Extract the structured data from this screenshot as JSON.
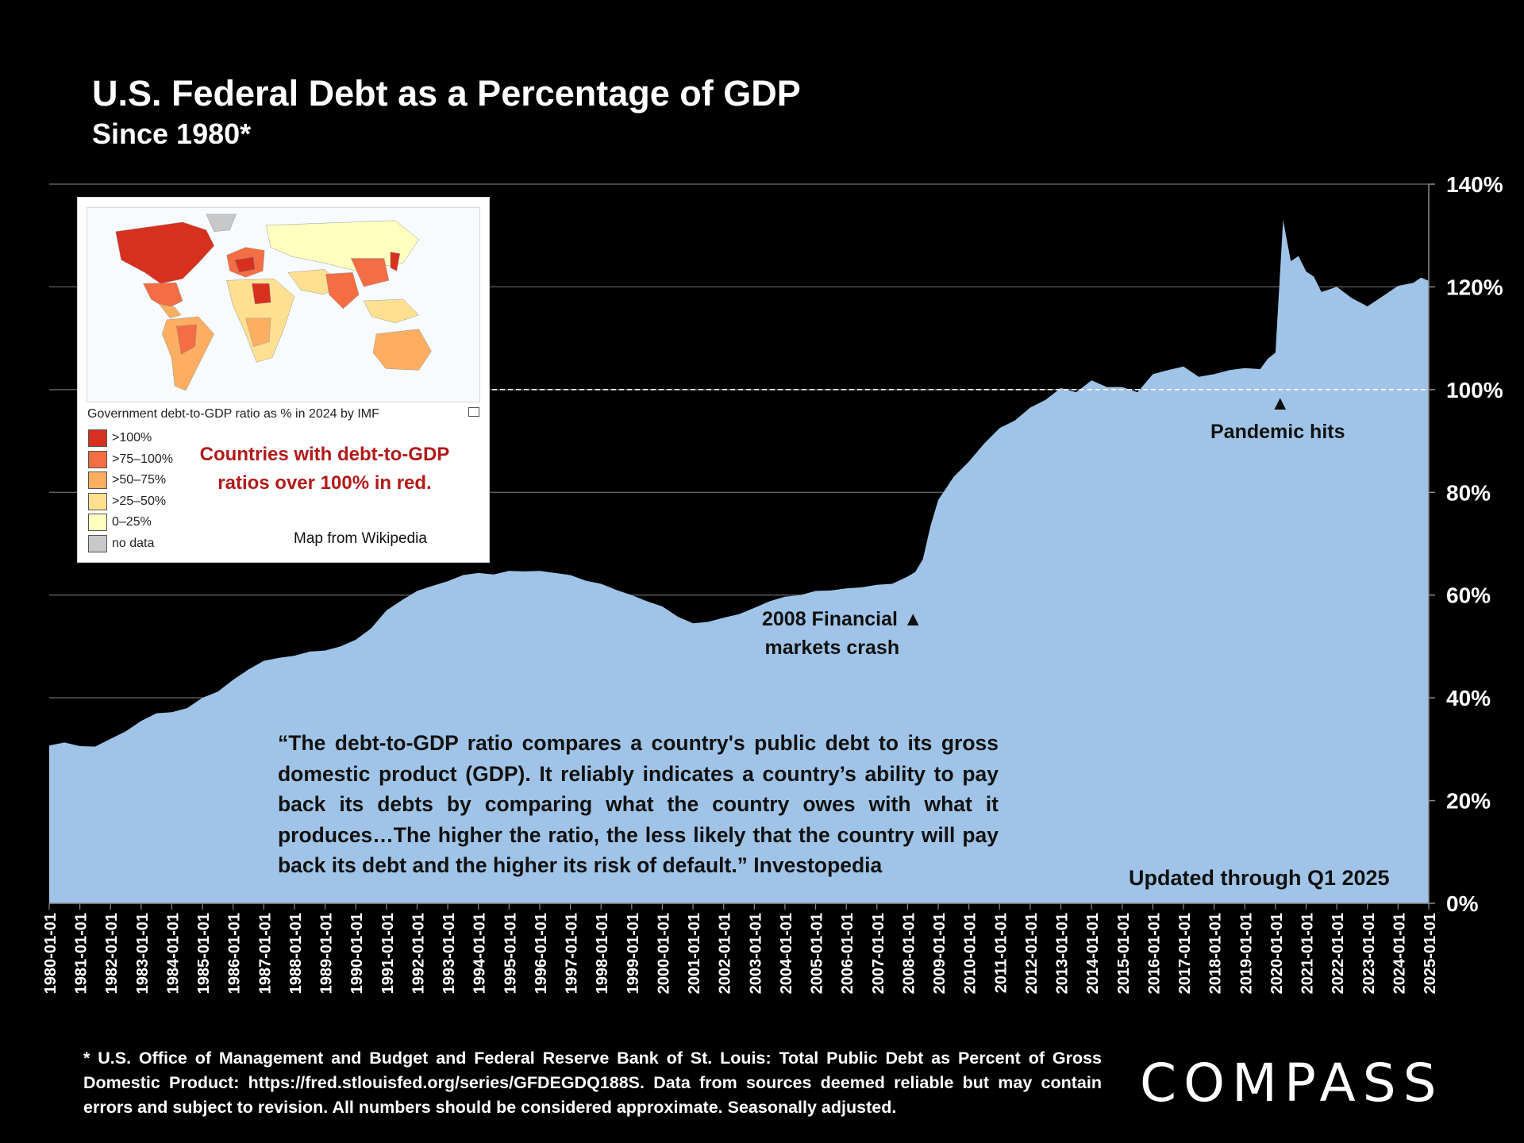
{
  "header": {
    "title": "U.S. Federal Debt as a Percentage of GDP",
    "subtitle": "Since 1980*"
  },
  "chart_data": {
    "type": "area",
    "title": "U.S. Federal Debt as a Percentage of GDP",
    "subtitle": "Since 1980*",
    "xlabel": "",
    "ylabel": "",
    "ylim": [
      0,
      140
    ],
    "y_ticks": [
      "0%",
      "20%",
      "40%",
      "60%",
      "80%",
      "100%",
      "120%",
      "140%"
    ],
    "x_ticks": [
      "1980-01-01",
      "1981-01-01",
      "1982-01-01",
      "1983-01-01",
      "1984-01-01",
      "1985-01-01",
      "1986-01-01",
      "1987-01-01",
      "1988-01-01",
      "1989-01-01",
      "1990-01-01",
      "1991-01-01",
      "1992-01-01",
      "1993-01-01",
      "1994-01-01",
      "1995-01-01",
      "1996-01-01",
      "1997-01-01",
      "1998-01-01",
      "1999-01-01",
      "2000-01-01",
      "2001-01-01",
      "2002-01-01",
      "2003-01-01",
      "2004-01-01",
      "2005-01-01",
      "2006-01-01",
      "2007-01-01",
      "2008-01-01",
      "2009-01-01",
      "2010-01-01",
      "2011-01-01",
      "2012-01-01",
      "2013-01-01",
      "2014-01-01",
      "2015-01-01",
      "2016-01-01",
      "2017-01-01",
      "2018-01-01",
      "2019-01-01",
      "2020-01-01",
      "2021-01-01",
      "2022-01-01",
      "2023-01-01",
      "2024-01-01",
      "2025-01-01"
    ],
    "grid": true,
    "y_axis_side": "right",
    "reference_line": 100,
    "fill_color": "#a0c4e7",
    "points": [
      [
        1980.0,
        30.7
      ],
      [
        1980.5,
        31.3
      ],
      [
        1981.0,
        30.6
      ],
      [
        1981.5,
        30.5
      ],
      [
        1982.0,
        32.0
      ],
      [
        1982.5,
        33.5
      ],
      [
        1983.0,
        35.5
      ],
      [
        1983.5,
        37.0
      ],
      [
        1984.0,
        37.2
      ],
      [
        1984.5,
        38.0
      ],
      [
        1985.0,
        40.0
      ],
      [
        1985.5,
        41.2
      ],
      [
        1986.0,
        43.5
      ],
      [
        1986.5,
        45.5
      ],
      [
        1987.0,
        47.2
      ],
      [
        1987.5,
        47.8
      ],
      [
        1988.0,
        48.2
      ],
      [
        1988.5,
        49.0
      ],
      [
        1989.0,
        49.2
      ],
      [
        1989.5,
        50.0
      ],
      [
        1990.0,
        51.3
      ],
      [
        1990.5,
        53.5
      ],
      [
        1991.0,
        57.0
      ],
      [
        1991.5,
        59.0
      ],
      [
        1992.0,
        60.8
      ],
      [
        1992.5,
        61.8
      ],
      [
        1993.0,
        62.7
      ],
      [
        1993.5,
        63.9
      ],
      [
        1994.0,
        64.3
      ],
      [
        1994.5,
        64.0
      ],
      [
        1995.0,
        64.7
      ],
      [
        1995.5,
        64.6
      ],
      [
        1996.0,
        64.7
      ],
      [
        1996.5,
        64.3
      ],
      [
        1997.0,
        63.9
      ],
      [
        1997.5,
        62.8
      ],
      [
        1998.0,
        62.2
      ],
      [
        1998.5,
        61.0
      ],
      [
        1999.0,
        60.0
      ],
      [
        1999.5,
        58.8
      ],
      [
        2000.0,
        57.8
      ],
      [
        2000.5,
        55.8
      ],
      [
        2001.0,
        54.5
      ],
      [
        2001.5,
        54.8
      ],
      [
        2002.0,
        55.6
      ],
      [
        2002.5,
        56.3
      ],
      [
        2003.0,
        57.5
      ],
      [
        2003.5,
        58.8
      ],
      [
        2004.0,
        59.7
      ],
      [
        2004.5,
        60.0
      ],
      [
        2005.0,
        60.8
      ],
      [
        2005.5,
        60.9
      ],
      [
        2006.0,
        61.3
      ],
      [
        2006.5,
        61.5
      ],
      [
        2007.0,
        62.0
      ],
      [
        2007.5,
        62.2
      ],
      [
        2008.0,
        63.6
      ],
      [
        2008.25,
        64.5
      ],
      [
        2008.5,
        67.0
      ],
      [
        2008.75,
        73.5
      ],
      [
        2009.0,
        78.5
      ],
      [
        2009.5,
        83.0
      ],
      [
        2010.0,
        86.0
      ],
      [
        2010.5,
        89.5
      ],
      [
        2011.0,
        92.5
      ],
      [
        2011.5,
        94.0
      ],
      [
        2012.0,
        96.5
      ],
      [
        2012.5,
        98.0
      ],
      [
        2013.0,
        100.3
      ],
      [
        2013.5,
        99.5
      ],
      [
        2014.0,
        101.8
      ],
      [
        2014.5,
        100.5
      ],
      [
        2015.0,
        100.5
      ],
      [
        2015.5,
        99.5
      ],
      [
        2016.0,
        103.0
      ],
      [
        2016.5,
        103.8
      ],
      [
        2017.0,
        104.5
      ],
      [
        2017.5,
        102.5
      ],
      [
        2018.0,
        103.0
      ],
      [
        2018.5,
        103.8
      ],
      [
        2019.0,
        104.2
      ],
      [
        2019.5,
        104.0
      ],
      [
        2019.75,
        106.0
      ],
      [
        2020.0,
        107.2
      ],
      [
        2020.25,
        133.0
      ],
      [
        2020.5,
        125.0
      ],
      [
        2020.75,
        126.0
      ],
      [
        2021.0,
        123.0
      ],
      [
        2021.25,
        122.0
      ],
      [
        2021.5,
        119.0
      ],
      [
        2022.0,
        120.0
      ],
      [
        2022.5,
        117.8
      ],
      [
        2023.0,
        116.2
      ],
      [
        2023.5,
        118.2
      ],
      [
        2024.0,
        120.2
      ],
      [
        2024.5,
        120.8
      ],
      [
        2024.75,
        121.8
      ],
      [
        2025.0,
        121.2
      ]
    ],
    "annotations": [
      {
        "text_lines": [
          "2008 Financial",
          "markets crash"
        ],
        "marker": "▲",
        "x": 2008.5
      },
      {
        "text_lines": [
          "Pandemic hits"
        ],
        "marker": "▲",
        "x": 2020.0
      }
    ]
  },
  "inset": {
    "caption": "Government debt-to-GDP ratio as % in 2024 by IMF",
    "legend": [
      {
        "label": ">100%",
        "color": "#d7301f"
      },
      {
        "label": ">75–100%",
        "color": "#f46d43"
      },
      {
        "label": ">50–75%",
        "color": "#fdae61"
      },
      {
        "label": ">25–50%",
        "color": "#fee090"
      },
      {
        "label": "0–25%",
        "color": "#ffffbf"
      },
      {
        "label": "no data",
        "color": "#c8c8c8"
      }
    ],
    "note": "Countries with debt-to-GDP ratios over 100% in red.",
    "credit": "Map from Wikipedia"
  },
  "quote": "“The debt-to-GDP ratio compares a country's public debt to its gross domestic product (GDP). It reliably indicates a country’s ability to pay back its debts by comparing what the country owes with what it produces…The higher the ratio, the less likely that the country will pay back its debt and the higher its risk of default.” Investopedia",
  "updated": "Updated through Q1 2025",
  "footnote": "* U.S. Office of Management and Budget and Federal Reserve Bank of St. Louis: Total Public Debt as Percent of Gross Domestic Product: https://fred.stlouisfed.org/series/GFDEGDQ188S. Data from sources deemed reliable but may contain errors and subject to revision. All numbers should be considered approximate. Seasonally adjusted.",
  "logo": "COMPASS"
}
